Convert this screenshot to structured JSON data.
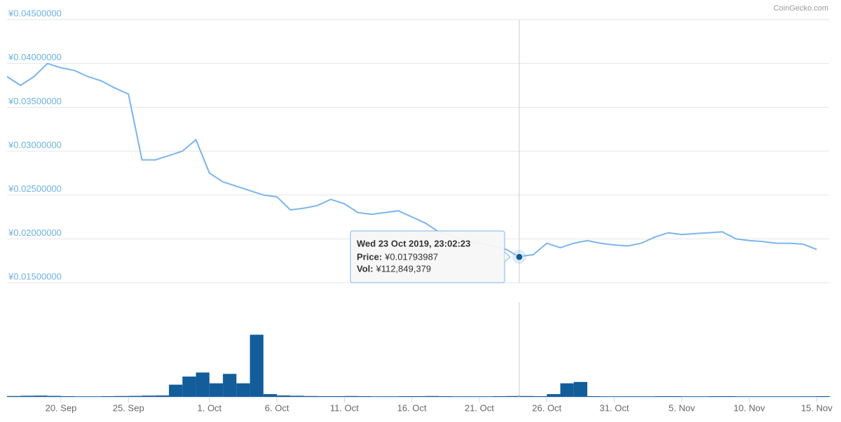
{
  "chart_data": {
    "type": "line",
    "credit": "CoinGecko.com",
    "x": [
      "2019-09-16",
      "2019-09-17",
      "2019-09-18",
      "2019-09-19",
      "2019-09-20",
      "2019-09-21",
      "2019-09-22",
      "2019-09-23",
      "2019-09-24",
      "2019-09-25",
      "2019-09-26",
      "2019-09-27",
      "2019-09-28",
      "2019-09-29",
      "2019-09-30",
      "2019-10-01",
      "2019-10-02",
      "2019-10-03",
      "2019-10-04",
      "2019-10-05",
      "2019-10-06",
      "2019-10-07",
      "2019-10-08",
      "2019-10-09",
      "2019-10-10",
      "2019-10-11",
      "2019-10-12",
      "2019-10-13",
      "2019-10-14",
      "2019-10-15",
      "2019-10-16",
      "2019-10-17",
      "2019-10-18",
      "2019-10-19",
      "2019-10-20",
      "2019-10-21",
      "2019-10-22",
      "2019-10-23",
      "2019-10-23T23:02:23",
      "2019-10-24",
      "2019-10-25",
      "2019-10-26",
      "2019-10-27",
      "2019-10-28",
      "2019-10-29",
      "2019-10-30",
      "2019-10-31",
      "2019-11-01",
      "2019-11-02",
      "2019-11-03",
      "2019-11-04",
      "2019-11-05",
      "2019-11-06",
      "2019-11-07",
      "2019-11-08",
      "2019-11-09",
      "2019-11-10",
      "2019-11-11",
      "2019-11-12",
      "2019-11-13",
      "2019-11-14",
      "2019-11-15"
    ],
    "series": [
      {
        "name": "Price",
        "color": "#7cb5ec",
        "values": [
          0.0385,
          0.0375,
          0.0385,
          0.04,
          0.0395,
          0.0392,
          0.0385,
          0.038,
          0.0372,
          0.0365,
          0.029,
          0.029,
          0.0295,
          0.03,
          0.0313,
          0.0275,
          0.0265,
          0.026,
          0.0255,
          0.025,
          0.0248,
          0.0233,
          0.0235,
          0.0238,
          0.0245,
          0.024,
          0.023,
          0.0228,
          0.023,
          0.0232,
          0.0225,
          0.0218,
          0.0208,
          0.0203,
          0.0198,
          0.0195,
          0.0192,
          0.0188,
          0.01793987,
          0.018,
          0.0182,
          0.0195,
          0.019,
          0.0195,
          0.0198,
          0.0195,
          0.0193,
          0.0192,
          0.0195,
          0.0202,
          0.0207,
          0.0205,
          0.0206,
          0.0207,
          0.0208,
          0.02,
          0.0198,
          0.0197,
          0.0195,
          0.0195,
          0.0194,
          0.0188
        ],
        "value_labels": [
          null,
          null,
          null,
          null,
          null,
          null,
          null,
          null,
          null,
          null,
          null,
          null,
          null,
          null,
          null,
          null,
          null,
          null,
          null,
          null,
          null,
          null,
          null,
          null,
          null,
          null,
          null,
          null,
          null,
          null,
          null,
          null,
          null,
          null,
          null,
          null,
          null,
          null,
          "¥0.01793987",
          null,
          null,
          null,
          null,
          null,
          null,
          null,
          null,
          null,
          null,
          null,
          null,
          null,
          null,
          null,
          null,
          null,
          null,
          null,
          null,
          null,
          null,
          null
        ]
      },
      {
        "name": "Vol",
        "color": "#135d9a",
        "axis": "y2",
        "values": [
          60000000,
          80000000,
          90000000,
          70000000,
          50000000,
          40000000,
          40000000,
          50000000,
          60000000,
          70000000,
          90000000,
          100000000,
          900000000,
          1500000000,
          1800000000,
          1000000000,
          1700000000,
          1000000000,
          4600000000,
          200000000,
          100000000,
          80000000,
          60000000,
          50000000,
          50000000,
          60000000,
          50000000,
          40000000,
          40000000,
          50000000,
          50000000,
          60000000,
          50000000,
          40000000,
          40000000,
          40000000,
          50000000,
          60000000,
          112849379,
          60000000,
          50000000,
          200000000,
          1000000000,
          1100000000,
          50000000,
          40000000,
          40000000,
          40000000,
          40000000,
          50000000,
          50000000,
          40000000,
          40000000,
          50000000,
          50000000,
          40000000,
          40000000,
          40000000,
          40000000,
          40000000,
          40000000,
          50000000
        ],
        "value_labels": [
          null,
          null,
          null,
          null,
          null,
          null,
          null,
          null,
          null,
          null,
          null,
          null,
          null,
          null,
          null,
          null,
          null,
          null,
          null,
          null,
          null,
          null,
          null,
          null,
          null,
          null,
          null,
          null,
          null,
          null,
          null,
          null,
          null,
          null,
          null,
          null,
          null,
          null,
          "¥112,849,379",
          null,
          null,
          null,
          null,
          null,
          null,
          null,
          null,
          null,
          null,
          null,
          null,
          null,
          null,
          null,
          null,
          null,
          null,
          null,
          null,
          null,
          null,
          null
        ]
      }
    ],
    "tooltip": {
      "title": "Wed 23 Oct 2019, 23:02:23",
      "labels": [
        "Price:",
        "Vol:"
      ]
    },
    "xlim": [
      "2019-09-16",
      "2019-11-15T22:00"
    ],
    "xticks": [
      {
        "value": "2019-09-20",
        "label": "20. Sep"
      },
      {
        "value": "2019-09-25",
        "label": "25. Sep"
      },
      {
        "value": "2019-10-01",
        "label": "1. Oct"
      },
      {
        "value": "2019-10-06",
        "label": "6. Oct"
      },
      {
        "value": "2019-10-11",
        "label": "11. Oct"
      },
      {
        "value": "2019-10-16",
        "label": "16. Oct"
      },
      {
        "value": "2019-10-21",
        "label": "21. Oct"
      },
      {
        "value": "2019-10-26",
        "label": "26. Oct"
      },
      {
        "value": "2019-10-31",
        "label": "31. Oct"
      },
      {
        "value": "2019-11-05",
        "label": "5. Nov"
      },
      {
        "value": "2019-11-10",
        "label": "10. Nov"
      },
      {
        "value": "2019-11-15",
        "label": "15. Nov"
      }
    ],
    "ylim": [
      0.015,
      0.045
    ],
    "yticks": [
      {
        "value": 0.015,
        "label": "¥0.01500000"
      },
      {
        "value": 0.02,
        "label": "¥0.02000000"
      },
      {
        "value": 0.025,
        "label": "¥0.02500000"
      },
      {
        "value": 0.03,
        "label": "¥0.03000000"
      },
      {
        "value": 0.035,
        "label": "¥0.03500000"
      },
      {
        "value": 0.04,
        "label": "¥0.04000000"
      },
      {
        "value": 0.045,
        "label": "¥0.04500000"
      }
    ],
    "y2lim": [
      0,
      7000000000
    ],
    "grid": true
  }
}
